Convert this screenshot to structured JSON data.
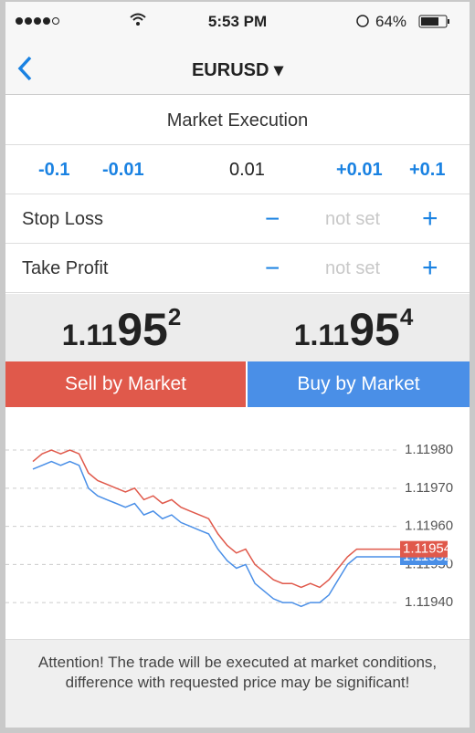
{
  "status_bar": {
    "time": "5:53 PM",
    "battery": "64%"
  },
  "nav": {
    "title": "EURUSD ▾"
  },
  "order_type": "Market Execution",
  "volume": {
    "steps_down": [
      "-0.1",
      "-0.01"
    ],
    "value": "0.01",
    "steps_up": [
      "+0.01",
      "+0.1"
    ]
  },
  "rows": [
    {
      "label": "Stop Loss",
      "value": "not set"
    },
    {
      "label": "Take Profit",
      "value": "not set"
    }
  ],
  "prices": [
    {
      "prefix": "1.11",
      "big": "95",
      "pip": "2"
    },
    {
      "prefix": "1.11",
      "big": "95",
      "pip": "4"
    }
  ],
  "buttons": {
    "sell": "Sell by Market",
    "buy": "Buy by Market"
  },
  "chart": {
    "type": "line",
    "ylim": [
      1.11935,
      1.11986
    ],
    "yticks": [
      {
        "value": 1.1198,
        "label": "1.11980"
      },
      {
        "value": 1.1197,
        "label": "1.11970"
      },
      {
        "value": 1.1196,
        "label": "1.11960"
      },
      {
        "value": 1.1195,
        "label": "1.11950"
      },
      {
        "value": 1.1194,
        "label": "1.11940"
      }
    ],
    "grid": true,
    "series": [
      {
        "color": "#4a8fe7",
        "price_label": "1.11952",
        "values": [
          1.11975,
          1.11976,
          1.11977,
          1.11976,
          1.11977,
          1.11976,
          1.1197,
          1.11968,
          1.11967,
          1.11966,
          1.11965,
          1.11966,
          1.11963,
          1.11964,
          1.11962,
          1.11963,
          1.11961,
          1.1196,
          1.11959,
          1.11958,
          1.11954,
          1.11951,
          1.11949,
          1.1195,
          1.11945,
          1.11943,
          1.11941,
          1.1194,
          1.1194,
          1.11939,
          1.1194,
          1.1194,
          1.11942,
          1.11946,
          1.1195,
          1.11952,
          1.11952,
          1.11952,
          1.11952,
          1.11952
        ]
      },
      {
        "color": "#e0594b",
        "price_label": "1.11954",
        "values": [
          1.11977,
          1.11979,
          1.1198,
          1.11979,
          1.1198,
          1.11979,
          1.11974,
          1.11972,
          1.11971,
          1.1197,
          1.11969,
          1.1197,
          1.11967,
          1.11968,
          1.11966,
          1.11967,
          1.11965,
          1.11964,
          1.11963,
          1.11962,
          1.11958,
          1.11955,
          1.11953,
          1.11954,
          1.1195,
          1.11948,
          1.11946,
          1.11945,
          1.11945,
          1.11944,
          1.11945,
          1.11944,
          1.11946,
          1.11949,
          1.11952,
          1.11954,
          1.11954,
          1.11954,
          1.11954,
          1.11954
        ]
      }
    ]
  },
  "notice": "Attention! The trade will be executed at market conditions, difference with requested price may be significant!"
}
